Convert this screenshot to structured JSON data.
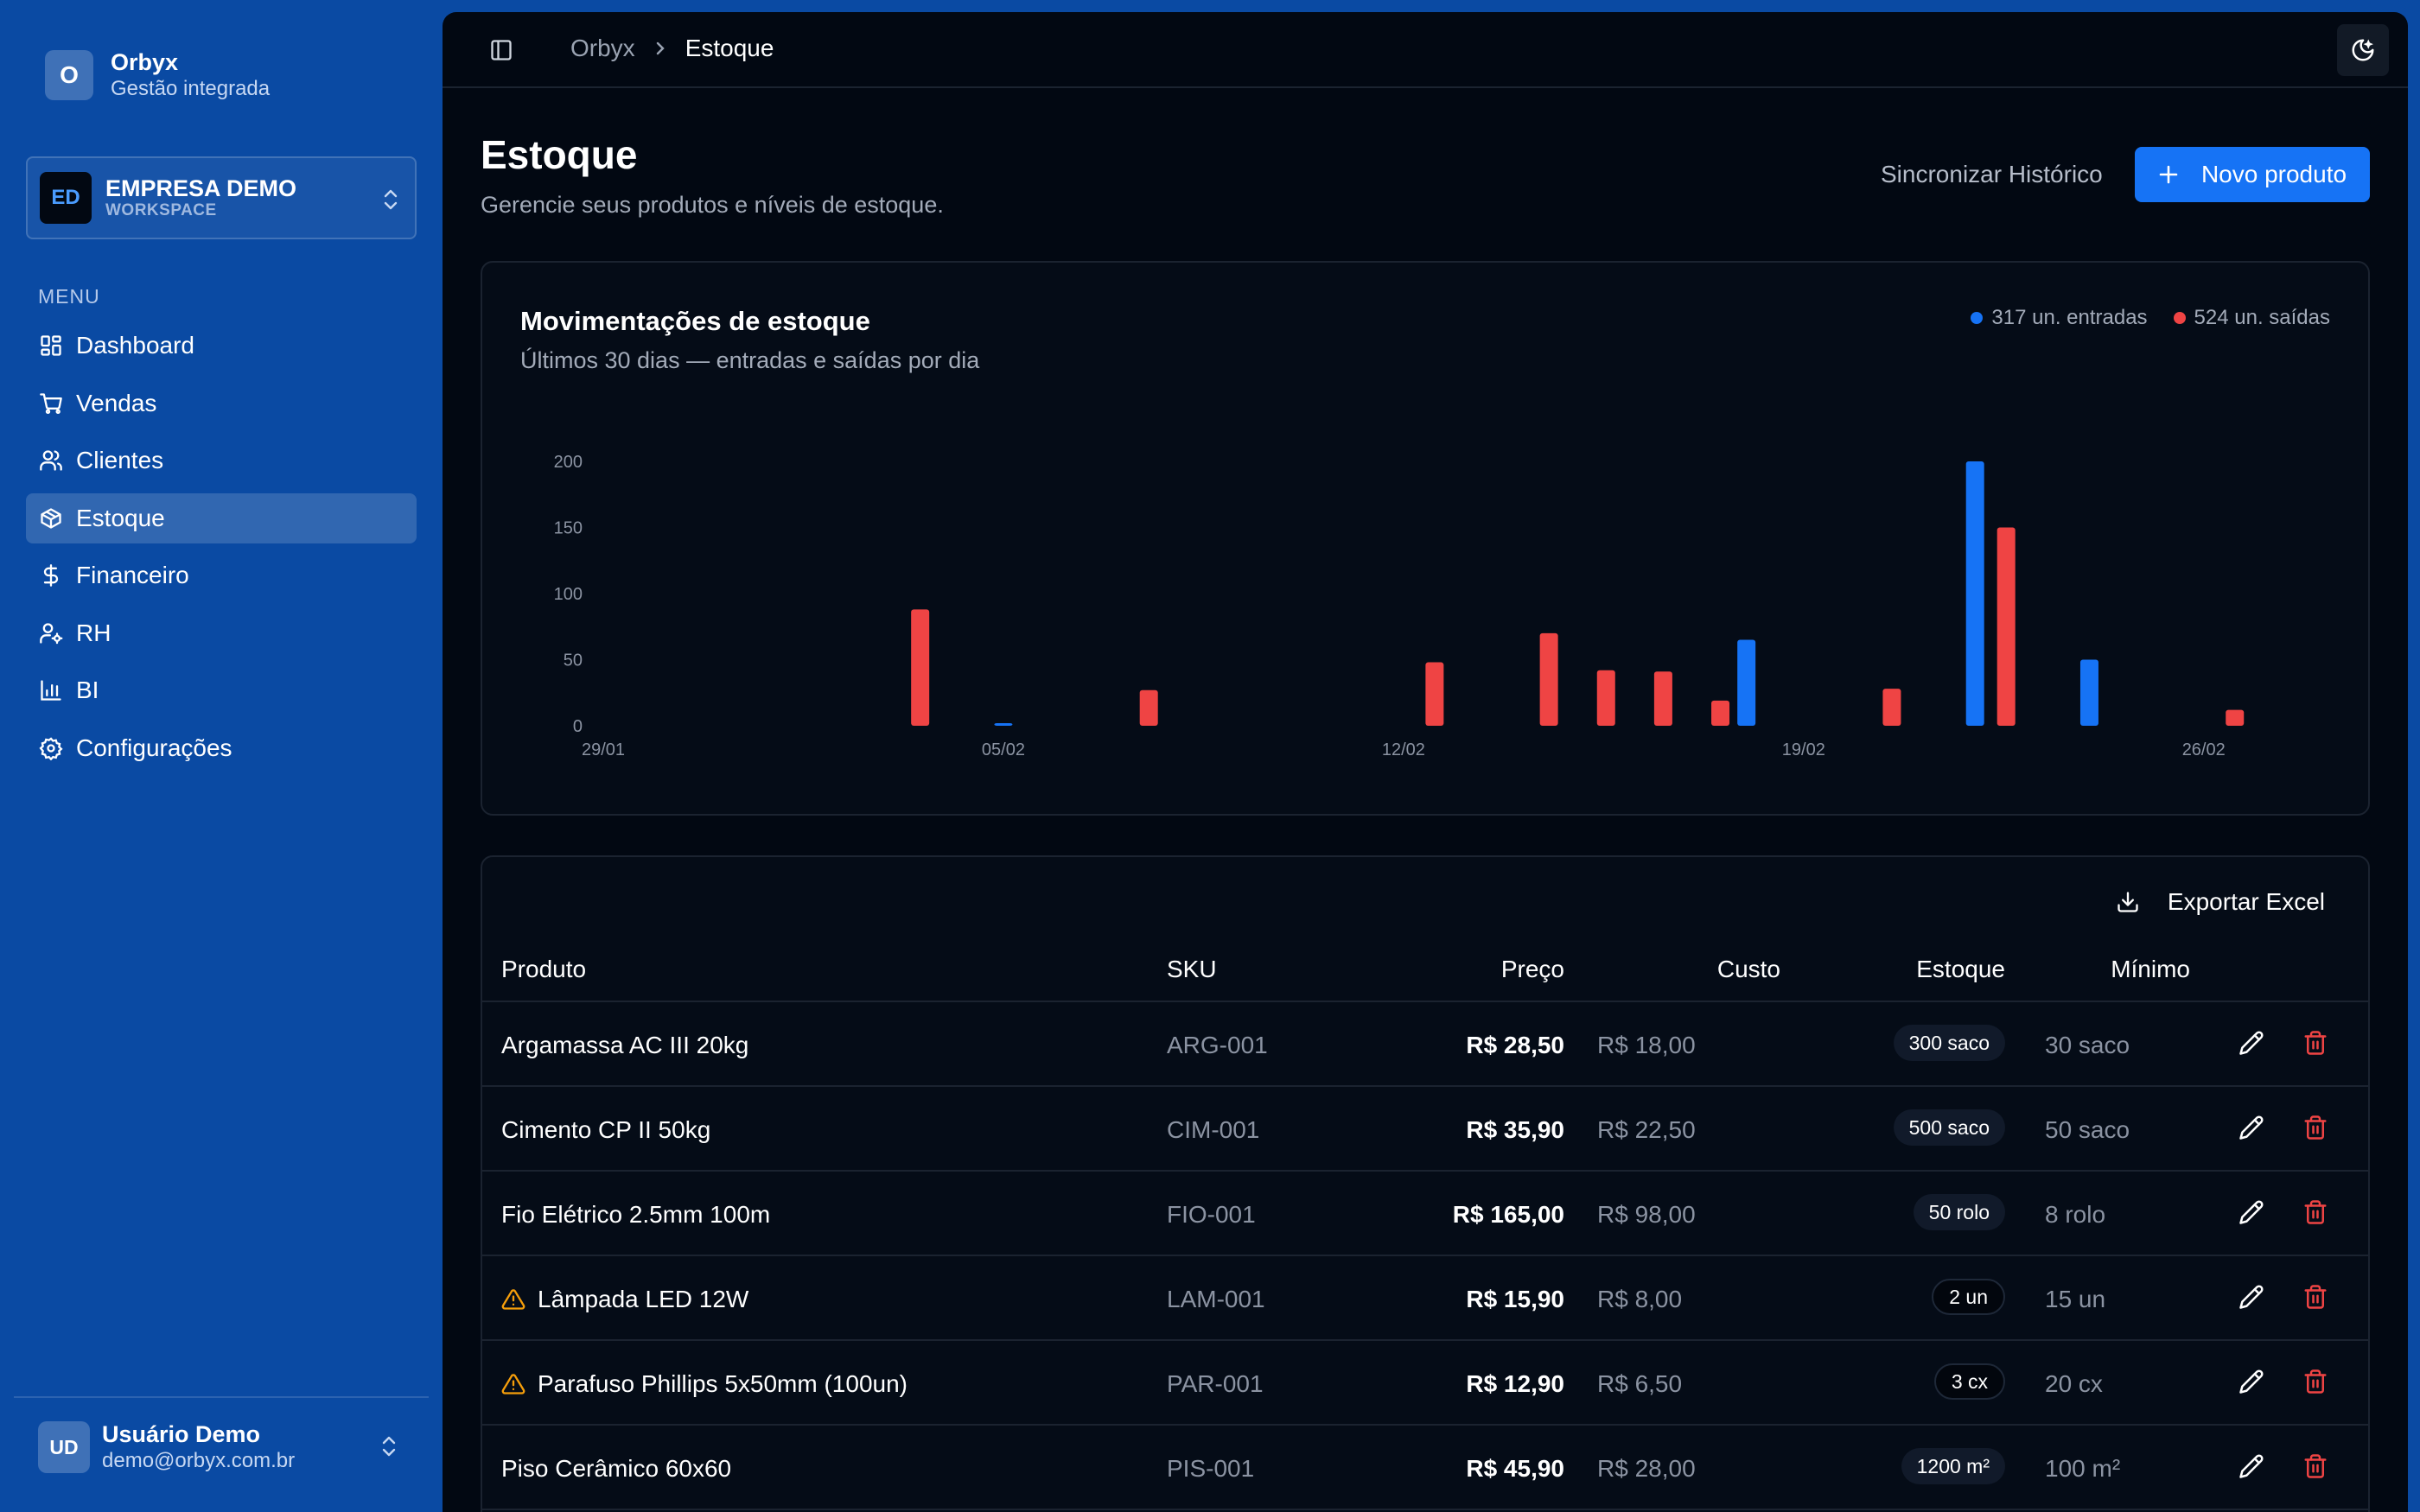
{
  "brand": {
    "logo_letter": "O",
    "name": "Orbyx",
    "tagline": "Gestão integrada"
  },
  "workspace": {
    "initials": "ED",
    "name": "EMPRESA DEMO",
    "label": "WORKSPACE"
  },
  "menu": {
    "label": "MENU",
    "items": [
      {
        "label": "Dashboard",
        "icon": "dashboard-icon"
      },
      {
        "label": "Vendas",
        "icon": "cart-icon"
      },
      {
        "label": "Clientes",
        "icon": "users-icon"
      },
      {
        "label": "Estoque",
        "icon": "box-icon",
        "active": true
      },
      {
        "label": "Financeiro",
        "icon": "dollar-icon"
      },
      {
        "label": "RH",
        "icon": "user-cog-icon"
      },
      {
        "label": "BI",
        "icon": "bar-chart-icon"
      },
      {
        "label": "Configurações",
        "icon": "gear-icon"
      }
    ]
  },
  "user": {
    "initials": "UD",
    "name": "Usuário Demo",
    "email": "demo@orbyx.com.br"
  },
  "breadcrumb": {
    "root": "Orbyx",
    "current": "Estoque"
  },
  "page": {
    "title": "Estoque",
    "subtitle": "Gerencie seus produtos e níveis de estoque.",
    "sync_label": "Sincronizar Histórico",
    "new_label": "Novo produto"
  },
  "chart_card": {
    "title": "Movimentações de estoque",
    "subtitle": "Últimos 30 dias — entradas e saídas por dia",
    "legend_in": "317 un. entradas",
    "legend_out": "524 un. saídas"
  },
  "chart_data": {
    "type": "bar",
    "title": "Movimentações de estoque",
    "subtitle": "Últimos 30 dias — entradas e saídas por dia",
    "x_tick_labels": [
      "29/01",
      "05/02",
      "12/02",
      "19/02",
      "26/02"
    ],
    "y_ticks": [
      0,
      50,
      100,
      150,
      200
    ],
    "ylim": [
      0,
      200
    ],
    "colors": {
      "entradas": "#1673f5",
      "saidas": "#ef4444"
    },
    "x": [
      "29/01",
      "30/01",
      "31/01",
      "01/02",
      "02/02",
      "03/02",
      "04/02",
      "05/02",
      "06/02",
      "07/02",
      "08/02",
      "09/02",
      "10/02",
      "11/02",
      "12/02",
      "13/02",
      "14/02",
      "15/02",
      "16/02",
      "17/02",
      "18/02",
      "19/02",
      "20/02",
      "21/02",
      "22/02",
      "23/02",
      "24/02",
      "25/02",
      "26/02",
      "27/02",
      "28/02"
    ],
    "series": [
      {
        "name": "317 un. entradas",
        "values": [
          0,
          0,
          0,
          0,
          0,
          0,
          0,
          2,
          0,
          0,
          0,
          0,
          0,
          0,
          0,
          0,
          0,
          0,
          0,
          0,
          65,
          0,
          0,
          0,
          200,
          0,
          50,
          0,
          0,
          0,
          0
        ]
      },
      {
        "name": "524 un. saídas",
        "values": [
          0,
          0,
          0,
          0,
          0,
          88,
          0,
          0,
          0,
          27,
          0,
          0,
          0,
          0,
          48,
          0,
          70,
          42,
          41,
          19,
          0,
          0,
          28,
          0,
          150,
          0,
          0,
          0,
          12,
          0,
          0
        ]
      }
    ]
  },
  "table": {
    "export_label": "Exportar Excel",
    "headers": {
      "product": "Produto",
      "sku": "SKU",
      "price": "Preço",
      "cost": "Custo",
      "stock": "Estoque",
      "min": "Mínimo"
    },
    "rows": [
      {
        "name": "Argamassa AC III 20kg",
        "sku": "ARG-001",
        "price": "R$ 28,50",
        "cost": "R$ 18,00",
        "stock": "300 saco",
        "min": "30 saco",
        "warning": false
      },
      {
        "name": "Cimento CP II 50kg",
        "sku": "CIM-001",
        "price": "R$ 35,90",
        "cost": "R$ 22,50",
        "stock": "500 saco",
        "min": "50 saco",
        "warning": false
      },
      {
        "name": "Fio Elétrico 2.5mm 100m",
        "sku": "FIO-001",
        "price": "R$ 165,00",
        "cost": "R$ 98,00",
        "stock": "50 rolo",
        "min": "8 rolo",
        "warning": false
      },
      {
        "name": "Lâmpada LED 12W",
        "sku": "LAM-001",
        "price": "R$ 15,90",
        "cost": "R$ 8,00",
        "stock": "2 un",
        "min": "15 un",
        "warning": true
      },
      {
        "name": "Parafuso Phillips 5x50mm (100un)",
        "sku": "PAR-001",
        "price": "R$ 12,90",
        "cost": "R$ 6,50",
        "stock": "3 cx",
        "min": "20 cx",
        "warning": true
      },
      {
        "name": "Piso Cerâmico 60x60",
        "sku": "PIS-001",
        "price": "R$ 45,90",
        "cost": "R$ 28,00",
        "stock": "1200 m²",
        "min": "100 m²",
        "warning": false
      }
    ]
  }
}
